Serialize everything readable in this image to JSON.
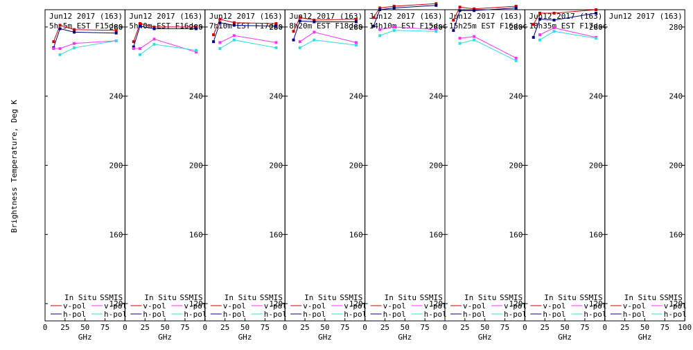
{
  "figure": {
    "ylabel": "Brightness Temperature, Deg K",
    "xlabel": "GHz",
    "y_ticks": [
      120,
      160,
      200,
      240,
      280
    ],
    "x_ticks": [
      0,
      25,
      50,
      75,
      100
    ],
    "legend_headers": {
      "in_situ": "In Situ",
      "ssmis": "SSMIS"
    },
    "legend_labels": {
      "v": "v-pol",
      "h": "h-pol"
    }
  },
  "colors": {
    "insitu_v": "#cc0000",
    "insitu_h": "#000080",
    "ssmis_v": "#ff33ff",
    "ssmis_h": "#33dddd"
  },
  "chart_data": [
    {
      "type": "line",
      "title": "Jun12 2017 (163)",
      "subtitle": "5h 5m  EST F15des",
      "xlabel": "GHz",
      "ylabel": "Brightness Temperature, Deg K",
      "xlim": [
        0,
        100
      ],
      "ylim": [
        110,
        290
      ],
      "grid": false,
      "legend": "bottom",
      "x": [
        10.7,
        18.7,
        36.5,
        89
      ],
      "series": [
        {
          "name": "In Situ v-pol",
          "values": [
            271.5,
            281,
            278.5,
            278
          ]
        },
        {
          "name": "In Situ h-pol",
          "values": [
            268,
            279,
            277,
            276.5
          ]
        },
        {
          "name": "SSMIS v-pol",
          "values": [
            267.5,
            267.5,
            270.5,
            272
          ]
        },
        {
          "name": "SSMIS h-pol",
          "values": [
            null,
            264,
            268,
            272
          ]
        }
      ]
    },
    {
      "type": "line",
      "title": "Jun12 2017 (163)",
      "subtitle": "5h40m  EST F16des",
      "xlabel": "GHz",
      "ylabel": "",
      "xlim": [
        0,
        100
      ],
      "ylim": [
        110,
        290
      ],
      "grid": false,
      "legend": "bottom",
      "x": [
        10.7,
        18.7,
        36.5,
        89
      ],
      "series": [
        {
          "name": "In Situ v-pol",
          "values": [
            271.5,
            282,
            280,
            280
          ]
        },
        {
          "name": "In Situ h-pol",
          "values": [
            268.5,
            280.5,
            279,
            279
          ]
        },
        {
          "name": "SSMIS v-pol",
          "values": [
            267.5,
            267.5,
            273,
            265.5
          ]
        },
        {
          "name": "SSMIS h-pol",
          "values": [
            null,
            264,
            270,
            266.5
          ]
        }
      ]
    },
    {
      "type": "line",
      "title": "Jun12 2017 (163)",
      "subtitle": "7h10m  EST F17des",
      "xlabel": "GHz",
      "ylabel": "",
      "xlim": [
        0,
        100
      ],
      "ylim": [
        110,
        290
      ],
      "grid": false,
      "legend": "bottom",
      "x": [
        10.7,
        18.7,
        36.5,
        89
      ],
      "series": [
        {
          "name": "In Situ v-pol",
          "values": [
            275.5,
            284.5,
            282.5,
            282
          ]
        },
        {
          "name": "In Situ h-pol",
          "values": [
            271.5,
            282.5,
            281,
            280.5
          ]
        },
        {
          "name": "SSMIS v-pol",
          "values": [
            null,
            271,
            275,
            271
          ]
        },
        {
          "name": "SSMIS h-pol",
          "values": [
            null,
            267.5,
            272.5,
            268
          ]
        }
      ]
    },
    {
      "type": "line",
      "title": "Jun12 2017 (163)",
      "subtitle": "8h20m  EST F18des",
      "xlabel": "GHz",
      "ylabel": "",
      "xlim": [
        0,
        100
      ],
      "ylim": [
        110,
        290
      ],
      "grid": false,
      "legend": "bottom",
      "x": [
        10.7,
        18.7,
        36.5,
        89
      ],
      "series": [
        {
          "name": "In Situ v-pol",
          "values": [
            277.5,
            285.5,
            284,
            284.5
          ]
        },
        {
          "name": "In Situ h-pol",
          "values": [
            272.5,
            283.5,
            283,
            283
          ]
        },
        {
          "name": "SSMIS v-pol",
          "values": [
            null,
            271.5,
            277,
            271
          ]
        },
        {
          "name": "SSMIS h-pol",
          "values": [
            null,
            268,
            272.5,
            269.5
          ]
        }
      ]
    },
    {
      "type": "line",
      "title": "Jun12 2017 (163)",
      "subtitle": "14h10m  EST F15dsc",
      "xlabel": "GHz",
      "ylabel": "",
      "xlim": [
        0,
        100
      ],
      "ylim": [
        110,
        290
      ],
      "grid": false,
      "legend": "bottom",
      "x": [
        10.7,
        18.7,
        36.5,
        89
      ],
      "series": [
        {
          "name": "In Situ v-pol",
          "values": [
            285.5,
            291,
            292,
            293.5
          ]
        },
        {
          "name": "In Situ h-pol",
          "values": [
            280.5,
            290,
            291,
            292.5
          ]
        },
        {
          "name": "SSMIS v-pol",
          "values": [
            null,
            278.5,
            280,
            278.5
          ]
        },
        {
          "name": "SSMIS h-pol",
          "values": [
            null,
            275,
            278,
            277.5
          ]
        }
      ]
    },
    {
      "type": "line",
      "title": "Jun12 2017 (163)",
      "subtitle": "15h25m  EST F16dsc",
      "xlabel": "GHz",
      "ylabel": "",
      "xlim": [
        0,
        100
      ],
      "ylim": [
        110,
        290
      ],
      "grid": false,
      "legend": "bottom",
      "x": [
        10.7,
        18.7,
        36.5,
        89
      ],
      "series": [
        {
          "name": "In Situ v-pol",
          "values": [
            284,
            291.5,
            290.5,
            292
          ]
        },
        {
          "name": "In Situ h-pol",
          "values": [
            278,
            289.5,
            289.5,
            291
          ]
        },
        {
          "name": "SSMIS v-pol",
          "values": [
            null,
            273.5,
            274.5,
            262
          ]
        },
        {
          "name": "SSMIS h-pol",
          "values": [
            null,
            270.5,
            272.5,
            260.5
          ]
        }
      ]
    },
    {
      "type": "line",
      "title": "Jun12 2017 (163)",
      "subtitle": "18h35m  EST F17dsc",
      "xlabel": "GHz",
      "ylabel": "",
      "xlim": [
        0,
        100
      ],
      "ylim": [
        110,
        290
      ],
      "grid": false,
      "legend": "bottom",
      "x": [
        10.7,
        18.7,
        36.5,
        89
      ],
      "series": [
        {
          "name": "In Situ v-pol",
          "values": [
            281.5,
            288,
            288,
            290
          ]
        },
        {
          "name": "In Situ h-pol",
          "values": [
            274,
            284.5,
            284,
            288
          ]
        },
        {
          "name": "SSMIS v-pol",
          "values": [
            null,
            275.5,
            279.5,
            274
          ]
        },
        {
          "name": "SSMIS h-pol",
          "values": [
            null,
            272.5,
            277.5,
            273.5
          ]
        }
      ]
    },
    {
      "type": "line",
      "title": "Jun12 2017 (163)",
      "subtitle": "",
      "xlabel": "GHz",
      "ylabel": "",
      "xlim": [
        0,
        100
      ],
      "ylim": [
        110,
        290
      ],
      "grid": false,
      "legend": "bottom",
      "x": [],
      "series": []
    }
  ]
}
